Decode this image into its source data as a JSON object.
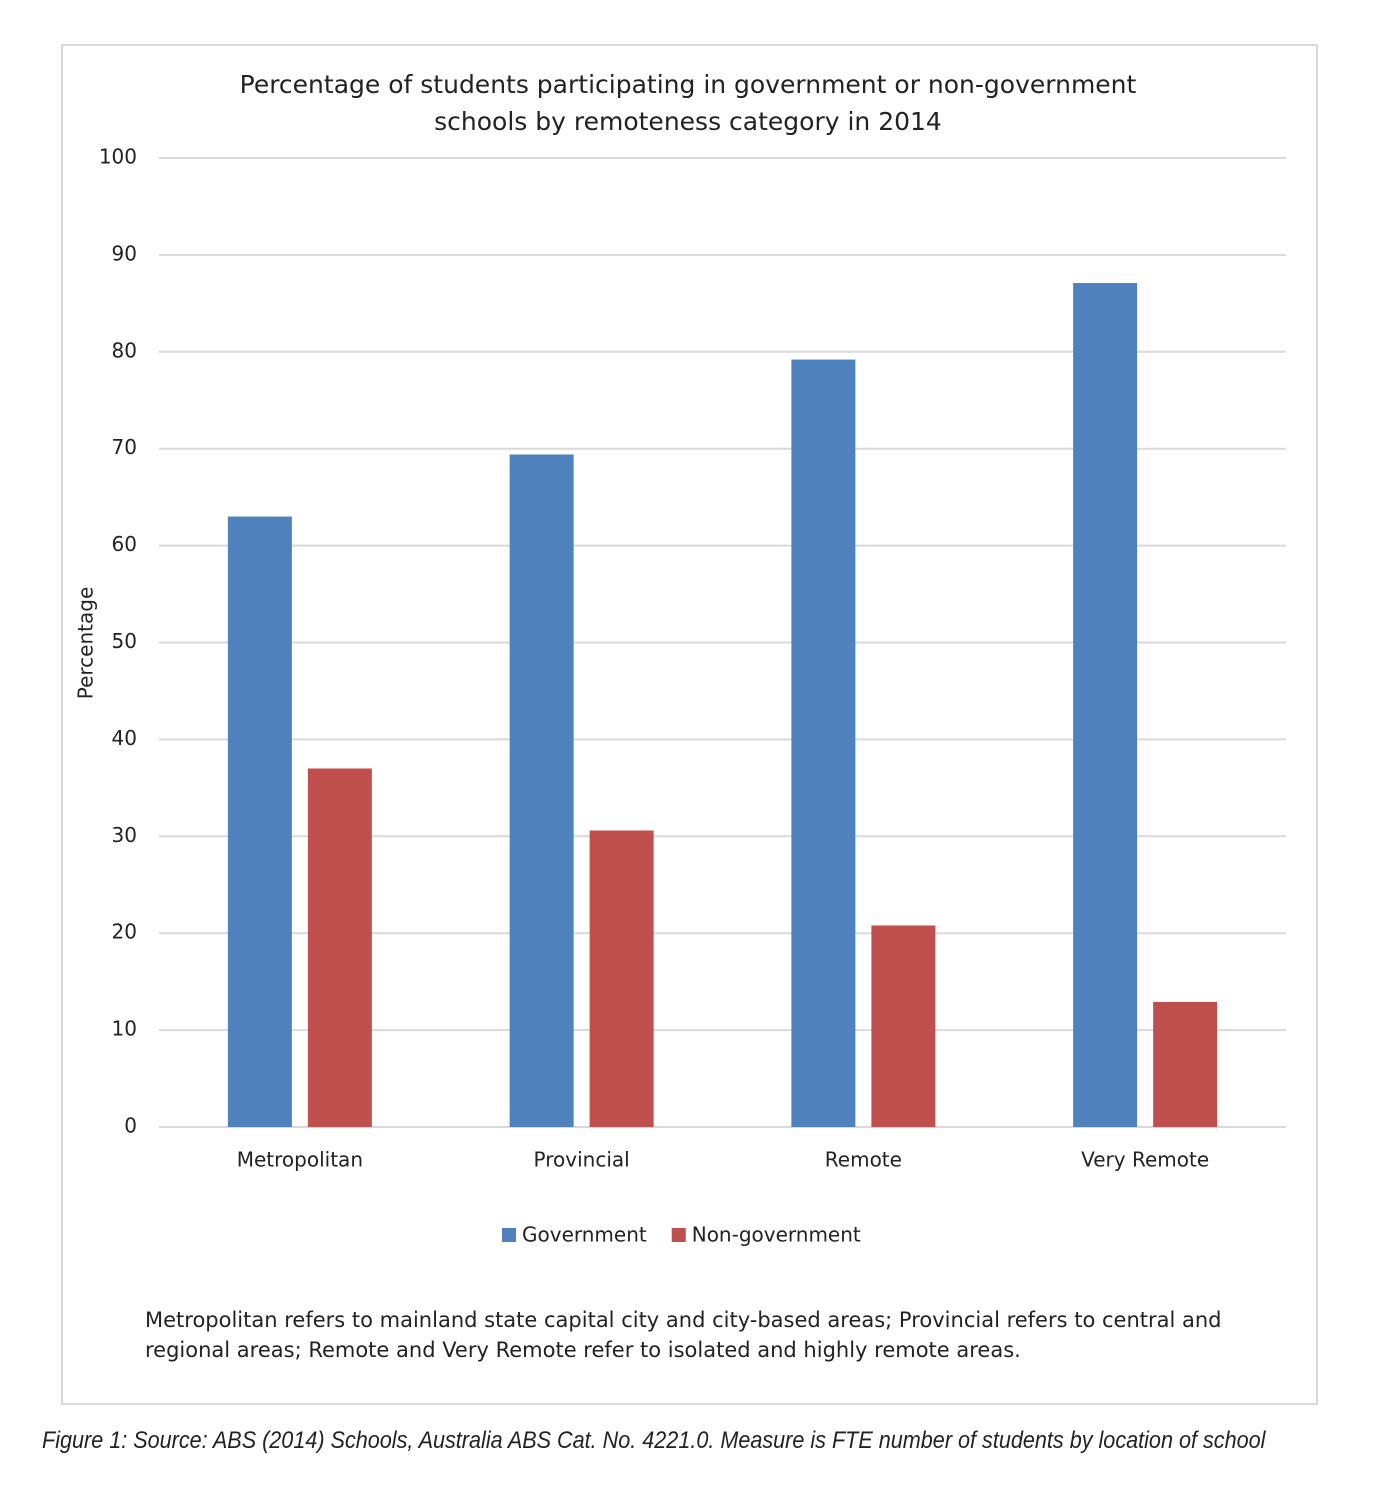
{
  "chart_data": {
    "type": "bar",
    "title": "Percentage of students participating in government or non-government schools by remoteness category in 2014",
    "y_label": "Percentage",
    "categories": [
      "Metropolitan",
      "Provincial",
      "Remote",
      "Very Remote"
    ],
    "series": [
      {
        "name": "Government",
        "color": "#4f81bd",
        "values": [
          63,
          69.4,
          79.2,
          87.1
        ]
      },
      {
        "name": "Non-government",
        "color": "#c0504d",
        "values": [
          37,
          30.6,
          20.8,
          12.9
        ]
      }
    ],
    "ylim": [
      0,
      100
    ],
    "yticks": [
      0,
      10,
      20,
      30,
      40,
      50,
      60,
      70,
      80,
      90,
      100
    ],
    "grid": true,
    "legend": "bottom",
    "note": "Metropolitan refers to mainland state capital city and city-based areas; Provincial refers to central and regional areas; Remote and Very Remote refer to isolated and highly remote areas.",
    "caption": "Figure 1: Source: ABS (2014) Schools, Australia ABS Cat. No. 4221.0. Measure is FTE number of students by location of school"
  }
}
